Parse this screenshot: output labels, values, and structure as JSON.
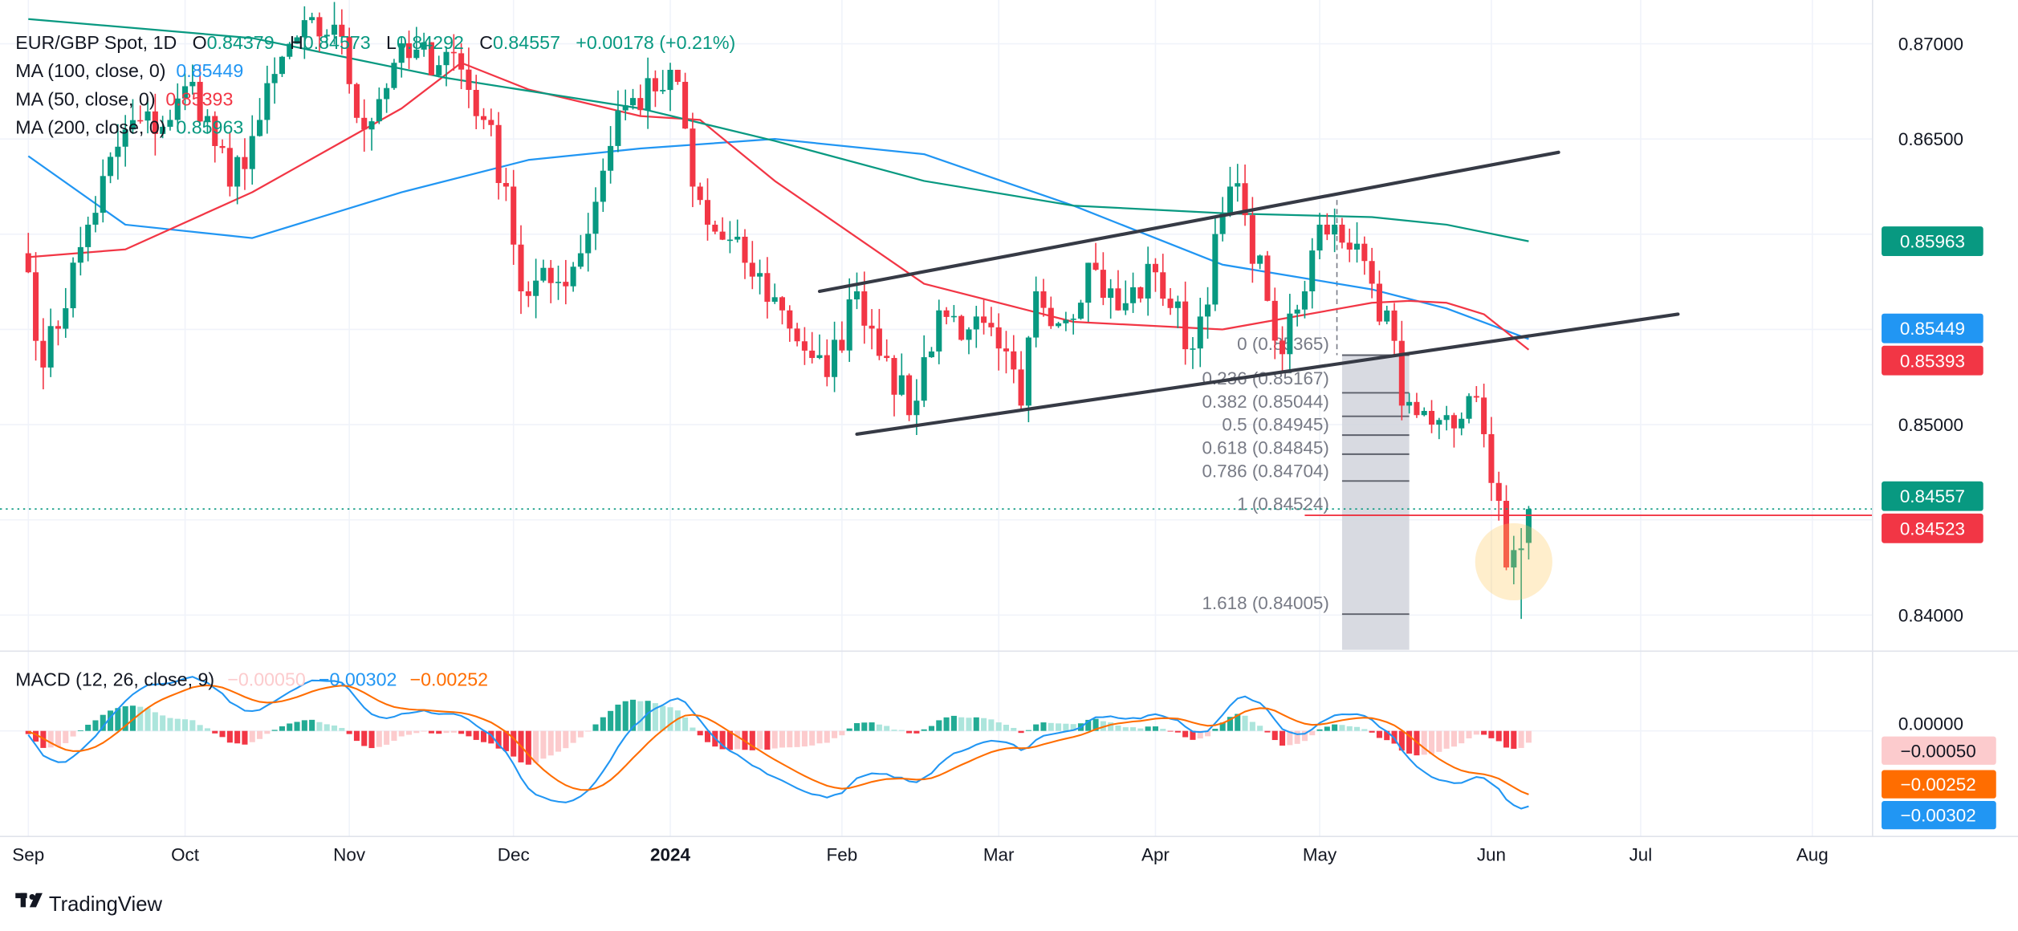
{
  "legend": {
    "symbol": "EUR/GBP Spot, 1D",
    "o_label": "O",
    "o": "0.84379",
    "h_label": "H",
    "h": "0.84573",
    "l_label": "L",
    "l": "0.84292",
    "c_label": "C",
    "c": "0.84557",
    "change": "+0.00178 (+0.21%)",
    "ma100_label": "MA (100, close, 0)",
    "ma100": "0.85449",
    "ma50_label": "MA (50, close, 0)",
    "ma50": "0.85393",
    "ma200_label": "MA (200, close, 0)",
    "ma200": "0.85963"
  },
  "macd_legend": {
    "label": "MACD (12, 26, close, 9)",
    "hist": "−0.00050",
    "macd": "−0.00302",
    "signal": "−0.00252"
  },
  "branding": "TradingView",
  "chart_data": {
    "type": "candlestick",
    "symbol": "EUR/GBP Spot",
    "interval": "1D",
    "price_ticks": [
      "0.84000",
      "0.85000",
      "0.86500",
      "0.87000"
    ],
    "price_tick_values": [
      0.84,
      0.85,
      0.865,
      0.87
    ],
    "grid_values": [
      0.84,
      0.845,
      0.85,
      0.855,
      0.86,
      0.865,
      0.87
    ],
    "ylim": [
      0.8375,
      0.872
    ],
    "macd_tick": "0.00000",
    "time_labels": [
      {
        "label": "Sep",
        "date": "2023-09-01",
        "bold": false
      },
      {
        "label": "Oct",
        "date": "2023-10-02",
        "bold": false
      },
      {
        "label": "Nov",
        "date": "2023-11-01",
        "bold": false
      },
      {
        "label": "Dec",
        "date": "2023-12-01",
        "bold": false
      },
      {
        "label": "2024",
        "date": "2024-01-01",
        "bold": true
      },
      {
        "label": "Feb",
        "date": "2024-02-01",
        "bold": false
      },
      {
        "label": "Mar",
        "date": "2024-03-01",
        "bold": false
      },
      {
        "label": "Apr",
        "date": "2024-04-01",
        "bold": false
      },
      {
        "label": "May",
        "date": "2024-05-01",
        "bold": false
      },
      {
        "label": "Jun",
        "date": "2024-06-03",
        "bold": false
      },
      {
        "label": "Jul",
        "date": "2024-07-01",
        "bold": false
      },
      {
        "label": "Aug",
        "date": "2024-08-01",
        "bold": false
      }
    ],
    "close_path": [
      [
        "2023-09-01",
        0.858
      ],
      [
        "2023-09-05",
        0.853
      ],
      [
        "2023-09-13",
        0.8605
      ],
      [
        "2023-09-20",
        0.8655
      ],
      [
        "2023-09-28",
        0.866
      ],
      [
        "2023-10-03",
        0.868
      ],
      [
        "2023-10-10",
        0.8625
      ],
      [
        "2023-10-16",
        0.866
      ],
      [
        "2023-10-20",
        0.87
      ],
      [
        "2023-10-30",
        0.871
      ],
      [
        "2023-11-03",
        0.8655
      ],
      [
        "2023-11-09",
        0.869
      ],
      [
        "2023-11-21",
        0.8695
      ],
      [
        "2023-11-27",
        0.866
      ],
      [
        "2023-11-30",
        0.8625
      ],
      [
        "2023-12-04",
        0.857
      ],
      [
        "2023-12-11",
        0.8575
      ],
      [
        "2023-12-14",
        0.859
      ],
      [
        "2023-12-21",
        0.8665
      ],
      [
        "2023-12-28",
        0.8675
      ],
      [
        "2024-01-02",
        0.868
      ],
      [
        "2024-01-04",
        0.8625
      ],
      [
        "2024-01-08",
        0.8605
      ],
      [
        "2024-01-15",
        0.8585
      ],
      [
        "2024-01-22",
        0.856
      ],
      [
        "2024-01-26",
        0.8535
      ],
      [
        "2024-01-30",
        0.8525
      ],
      [
        "2024-02-05",
        0.857
      ],
      [
        "2024-02-09",
        0.8535
      ],
      [
        "2024-02-14",
        0.8505
      ],
      [
        "2024-02-20",
        0.856
      ],
      [
        "2024-02-26",
        0.855
      ],
      [
        "2024-03-01",
        0.854
      ],
      [
        "2024-03-06",
        0.851
      ],
      [
        "2024-03-08",
        0.857
      ],
      [
        "2024-03-14",
        0.8555
      ],
      [
        "2024-03-19",
        0.8585
      ],
      [
        "2024-03-25",
        0.856
      ],
      [
        "2024-04-01",
        0.858
      ],
      [
        "2024-04-08",
        0.854
      ],
      [
        "2024-04-15",
        0.8625
      ],
      [
        "2024-04-17",
        0.861
      ],
      [
        "2024-04-22",
        0.8565
      ],
      [
        "2024-04-24",
        0.8537
      ],
      [
        "2024-04-29",
        0.857
      ],
      [
        "2024-05-01",
        0.8605
      ],
      [
        "2024-05-03",
        0.8605
      ],
      [
        "2024-05-08",
        0.8595
      ],
      [
        "2024-05-10",
        0.8574
      ],
      [
        "2024-05-15",
        0.8544
      ],
      [
        "2024-05-16",
        0.851
      ],
      [
        "2024-05-20",
        0.8505
      ],
      [
        "2024-05-22",
        0.85
      ],
      [
        "2024-05-24",
        0.8505
      ],
      [
        "2024-05-29",
        0.8515
      ],
      [
        "2024-05-31",
        0.8495
      ],
      [
        "2024-06-04",
        0.846
      ],
      [
        "2024-06-05",
        0.8425
      ],
      [
        "2024-06-07",
        0.8435
      ],
      [
        "2024-06-10",
        0.84557
      ]
    ],
    "last_candle": {
      "date": "2024-06-10",
      "open": 0.84379,
      "high": 0.84573,
      "low": 0.84292,
      "close": 0.84557
    },
    "moving_averages": [
      {
        "name": "MA (100, close, 0)",
        "color": "#2196f3",
        "last": "0.85449",
        "points": [
          [
            "2023-09-01",
            0.8641
          ],
          [
            "2023-09-20",
            0.8605
          ],
          [
            "2023-10-13",
            0.8598
          ],
          [
            "2023-11-10",
            0.8622
          ],
          [
            "2023-12-05",
            0.8639
          ],
          [
            "2023-12-26",
            0.8645
          ],
          [
            "2024-01-19",
            0.865
          ],
          [
            "2024-02-16",
            0.8642
          ],
          [
            "2024-03-15",
            0.8615
          ],
          [
            "2024-04-12",
            0.8584
          ],
          [
            "2024-05-10",
            0.8571
          ],
          [
            "2024-05-24",
            0.8561
          ],
          [
            "2024-06-10",
            0.85449
          ]
        ]
      },
      {
        "name": "MA (50, close, 0)",
        "color": "#f23645",
        "last": "0.85393",
        "points": [
          [
            "2023-09-01",
            0.8588
          ],
          [
            "2023-09-20",
            0.8592
          ],
          [
            "2023-10-13",
            0.8622
          ],
          [
            "2023-11-10",
            0.8666
          ],
          [
            "2023-11-22",
            0.869
          ],
          [
            "2023-12-05",
            0.8676
          ],
          [
            "2023-12-26",
            0.8662
          ],
          [
            "2024-01-05",
            0.866
          ],
          [
            "2024-01-19",
            0.8628
          ],
          [
            "2024-02-16",
            0.8574
          ],
          [
            "2024-03-15",
            0.8554
          ],
          [
            "2024-04-12",
            0.855
          ],
          [
            "2024-05-10",
            0.8564
          ],
          [
            "2024-05-17",
            0.8565
          ],
          [
            "2024-05-24",
            0.8564
          ],
          [
            "2024-05-31",
            0.8558
          ],
          [
            "2024-06-10",
            0.85393
          ]
        ]
      },
      {
        "name": "MA (200, close, 0)",
        "color": "#089981",
        "last": "0.85963",
        "points": [
          [
            "2023-09-01",
            0.8713
          ],
          [
            "2023-10-13",
            0.8703
          ],
          [
            "2023-11-20",
            0.8682
          ],
          [
            "2023-12-26",
            0.8666
          ],
          [
            "2024-01-19",
            0.8649
          ],
          [
            "2024-02-16",
            0.8628
          ],
          [
            "2024-03-15",
            0.8615
          ],
          [
            "2024-04-12",
            0.8611
          ],
          [
            "2024-05-10",
            0.8609
          ],
          [
            "2024-05-24",
            0.8605
          ],
          [
            "2024-06-10",
            0.85963
          ]
        ]
      }
    ],
    "price_tags": [
      {
        "value": 0.85963,
        "label": "0.85963",
        "color": "#089981"
      },
      {
        "value": 0.85449,
        "label": "0.85449",
        "color": "#2196f3"
      },
      {
        "value": 0.85393,
        "label": "0.85393",
        "color": "#f23645"
      },
      {
        "value": 0.84557,
        "label": "0.84557",
        "color": "#089981"
      },
      {
        "value": 0.84523,
        "label": "0.84523",
        "color": "#f23645"
      }
    ],
    "channel": {
      "color": "#363a45",
      "upper": [
        [
          "2024-01-29",
          0.857
        ],
        [
          "2024-06-14",
          0.8643
        ]
      ],
      "lower": [
        [
          "2024-02-05",
          0.8495
        ],
        [
          "2024-07-08",
          0.8558
        ]
      ]
    },
    "horizontal_line": {
      "value": 0.84524,
      "from": "2024-04-29",
      "color": "#f23645"
    },
    "fibonacci": {
      "from": "2024-05-06",
      "to": "2024-05-17",
      "anchor_high": 0.8618,
      "levels": [
        {
          "label": "0 (0.85365)",
          "value": 0.85365
        },
        {
          "label": "0.236 (0.85167)",
          "value": 0.85167
        },
        {
          "label": "0.382 (0.85044)",
          "value": 0.85044
        },
        {
          "label": "0.5 (0.84945)",
          "value": 0.84945
        },
        {
          "label": "0.618 (0.84845)",
          "value": 0.84845
        },
        {
          "label": "0.786 (0.84704)",
          "value": 0.84704
        },
        {
          "label": "1 (0.84524)",
          "value": 0.84524
        },
        {
          "label": "1.618 (0.84005)",
          "value": 0.84005
        }
      ]
    },
    "highlight_circle": {
      "date": "2024-06-06",
      "value": 0.8428,
      "color": "#ffc857"
    },
    "macd": {
      "params": [
        12,
        26,
        9
      ],
      "tags": [
        {
          "label": "−0.00050",
          "value": -0.0005,
          "bg": "#fccbcd",
          "fg": "#131722"
        },
        {
          "label": "−0.00252",
          "value": -0.00252,
          "bg": "#ff6d00",
          "fg": "#ffffff"
        },
        {
          "label": "−0.00302",
          "value": -0.00302,
          "bg": "#2196f3",
          "fg": "#ffffff"
        }
      ],
      "colors": {
        "macd": "#2196f3",
        "signal": "#ff6d00",
        "hist_up_strong": "#22ab94",
        "hist_up_weak": "#ace5dc",
        "hist_dn_strong": "#f23645",
        "hist_dn_weak": "#fccbcd"
      }
    },
    "colors": {
      "up": "#089981",
      "down": "#f23645",
      "grid": "#f0f3fa"
    }
  }
}
